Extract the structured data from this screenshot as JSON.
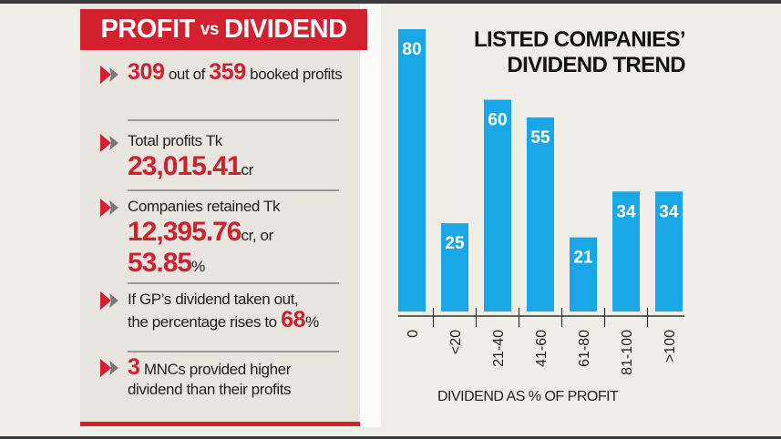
{
  "left": {
    "header": {
      "part1": "PROFIT",
      "vs": "vs",
      "part2": "DIVIDEND"
    },
    "items": [
      {
        "n1": "309",
        "t1": " out of ",
        "n2": "359",
        "t2": " booked profits"
      },
      {
        "t1": "Total profits Tk",
        "n1": "23,015.41",
        "t2": "cr"
      },
      {
        "t1": "Companies retained Tk",
        "n1": "12,395.76",
        "t2": "cr, or",
        "n2": "53.85",
        "t3": "%"
      },
      {
        "t1": "If GP’s dividend taken out,",
        "t2": "the percentage rises to ",
        "n1": "68",
        "t3": "%"
      },
      {
        "n1": "3",
        "t1": " MNCs provided higher",
        "t2": "dividend than their profits"
      }
    ],
    "bullet_icon": "double-chevron-right-icon"
  },
  "colors": {
    "accent": "#d2202f",
    "bar": "#1aa7e8"
  },
  "chart_data": {
    "type": "bar",
    "title": "LISTED COMPANIES’ DIVIDEND TREND",
    "title_line1": "LISTED COMPANIES’",
    "title_line2": "DIVIDEND TREND",
    "xlabel": "DIVIDEND AS % OF PROFIT",
    "ylabel": "",
    "categories": [
      "0",
      "<20",
      "21-40",
      "41-60",
      "61-80",
      "81-100",
      ">100"
    ],
    "values": [
      80,
      25,
      60,
      55,
      21,
      34,
      34
    ],
    "ylim": [
      0,
      80
    ],
    "grid": false,
    "data_labels": true
  }
}
